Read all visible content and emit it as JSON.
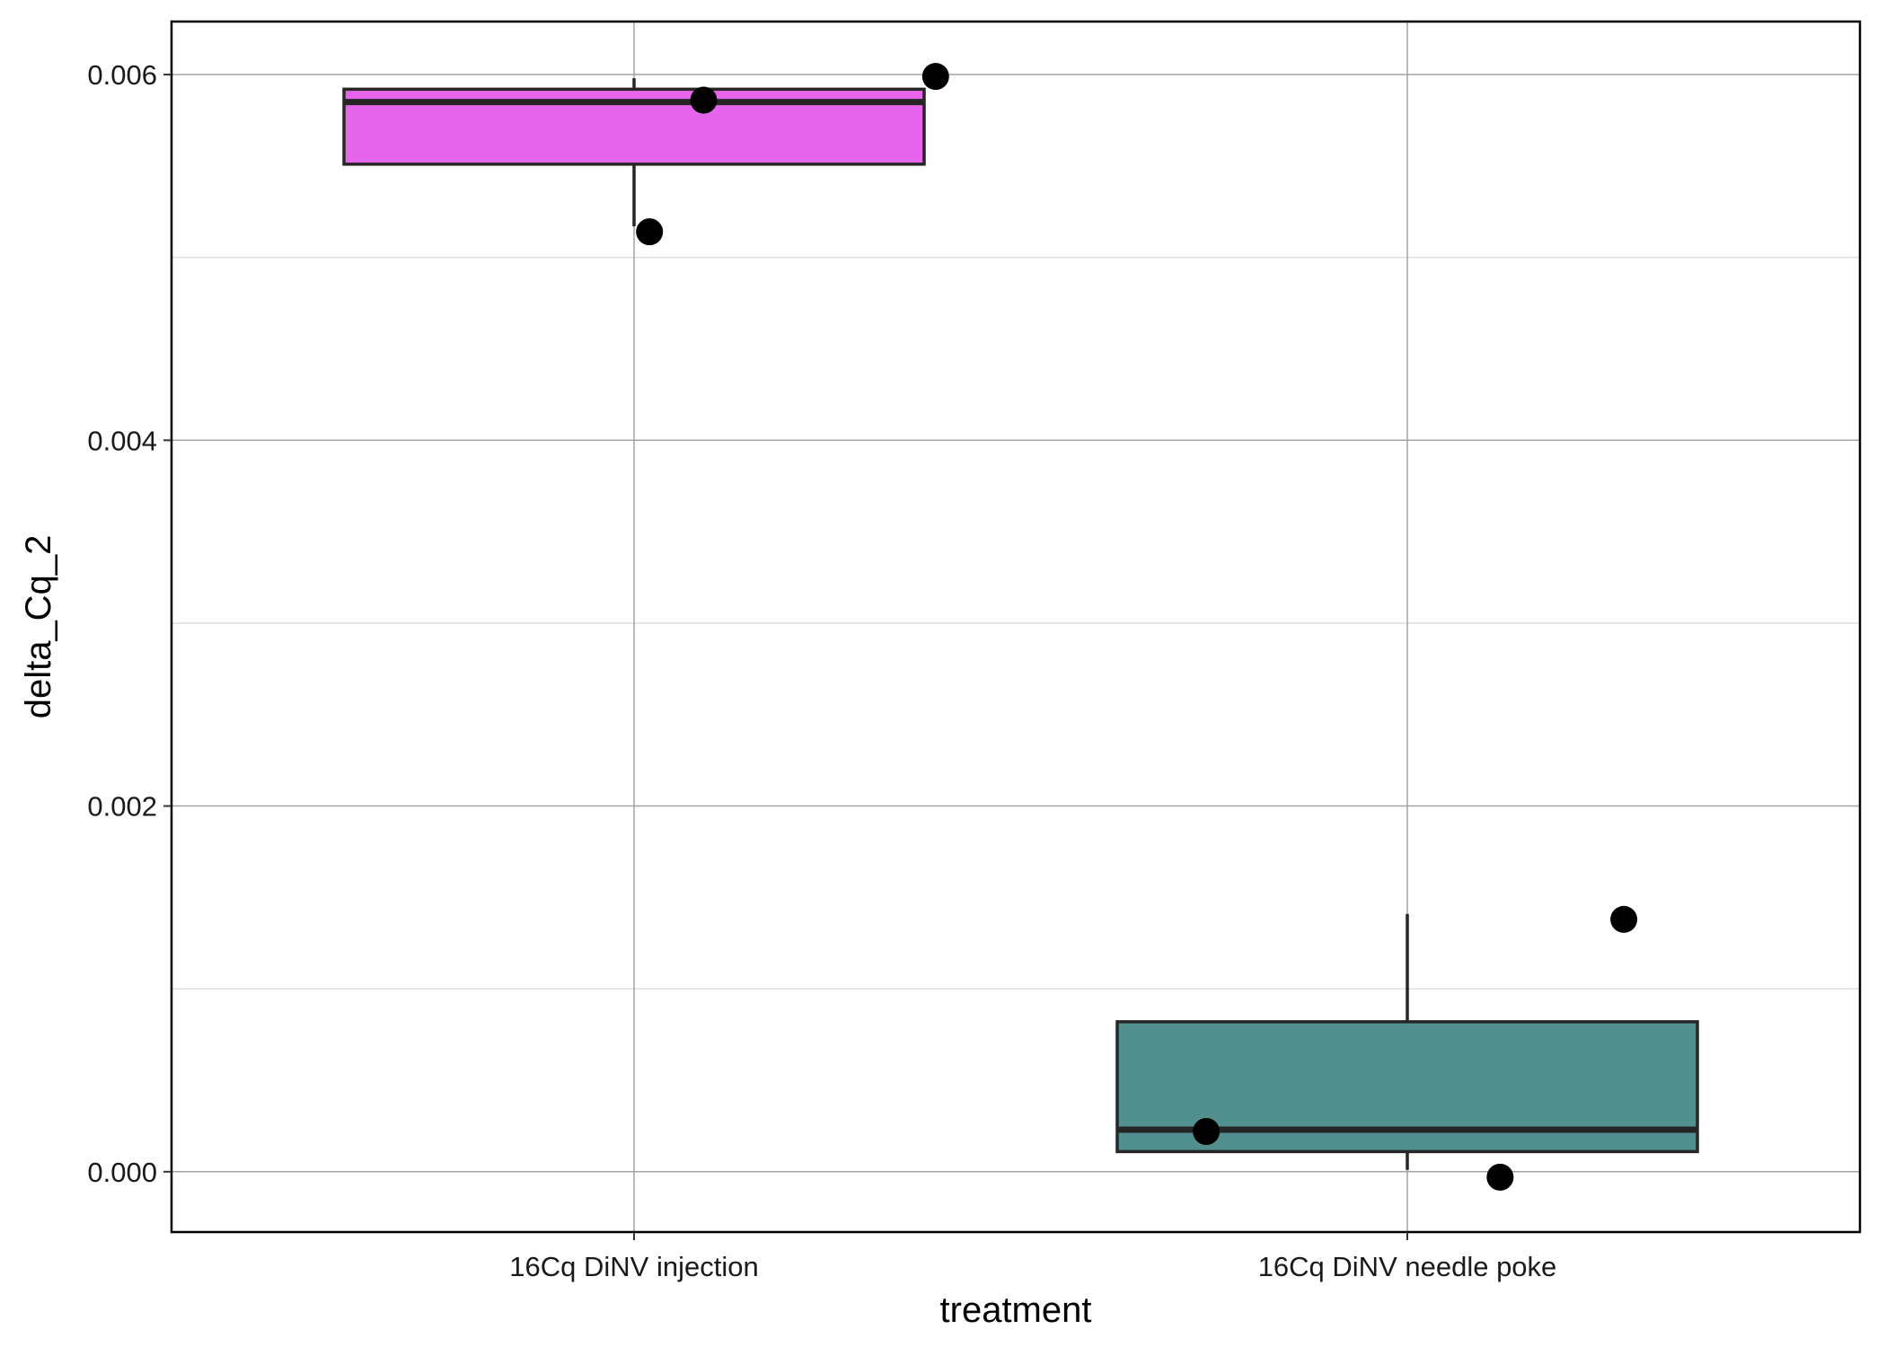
{
  "chart_data": {
    "type": "boxplot",
    "xlabel": "treatment",
    "ylabel": "delta_Cq_2",
    "categories": [
      "16Cq DiNV injection",
      "16Cq DiNV needle poke"
    ],
    "ylim": [
      -0.00033,
      0.00629
    ],
    "yticks": [
      0.0,
      0.002,
      0.004,
      0.006
    ],
    "ytick_labels": [
      "0.000",
      "0.002",
      "0.004",
      "0.006"
    ],
    "grid": true,
    "legend": "none",
    "boxes": [
      {
        "category": "16Cq DiNV injection",
        "fill": "#e765eb",
        "whisker_low": 0.00517,
        "q1": 0.00551,
        "median": 0.00585,
        "q3": 0.00592,
        "whisker_high": 0.00598
      },
      {
        "category": "16Cq DiNV needle poke",
        "fill": "#528f8f",
        "whisker_low": 1e-05,
        "q1": 0.00011,
        "median": 0.00023,
        "q3": 0.00082,
        "whisker_high": 0.00141
      }
    ],
    "points": [
      {
        "category": "16Cq DiNV injection",
        "jitter": 0.02,
        "y": 0.00514
      },
      {
        "category": "16Cq DiNV injection",
        "jitter": 0.09,
        "y": 0.00586
      },
      {
        "category": "16Cq DiNV injection",
        "jitter": 0.39,
        "y": 0.00599
      },
      {
        "category": "16Cq DiNV needle poke",
        "jitter": -0.26,
        "y": 0.00022
      },
      {
        "category": "16Cq DiNV needle poke",
        "jitter": 0.12,
        "y": -3e-05
      },
      {
        "category": "16Cq DiNV needle poke",
        "jitter": 0.28,
        "y": 0.00138
      }
    ],
    "colors": {
      "point": "#000000",
      "box_outline": "#262626",
      "grid_major": "#a3a3a3",
      "grid_minor": "#dedede",
      "panel_border": "#000000"
    }
  }
}
